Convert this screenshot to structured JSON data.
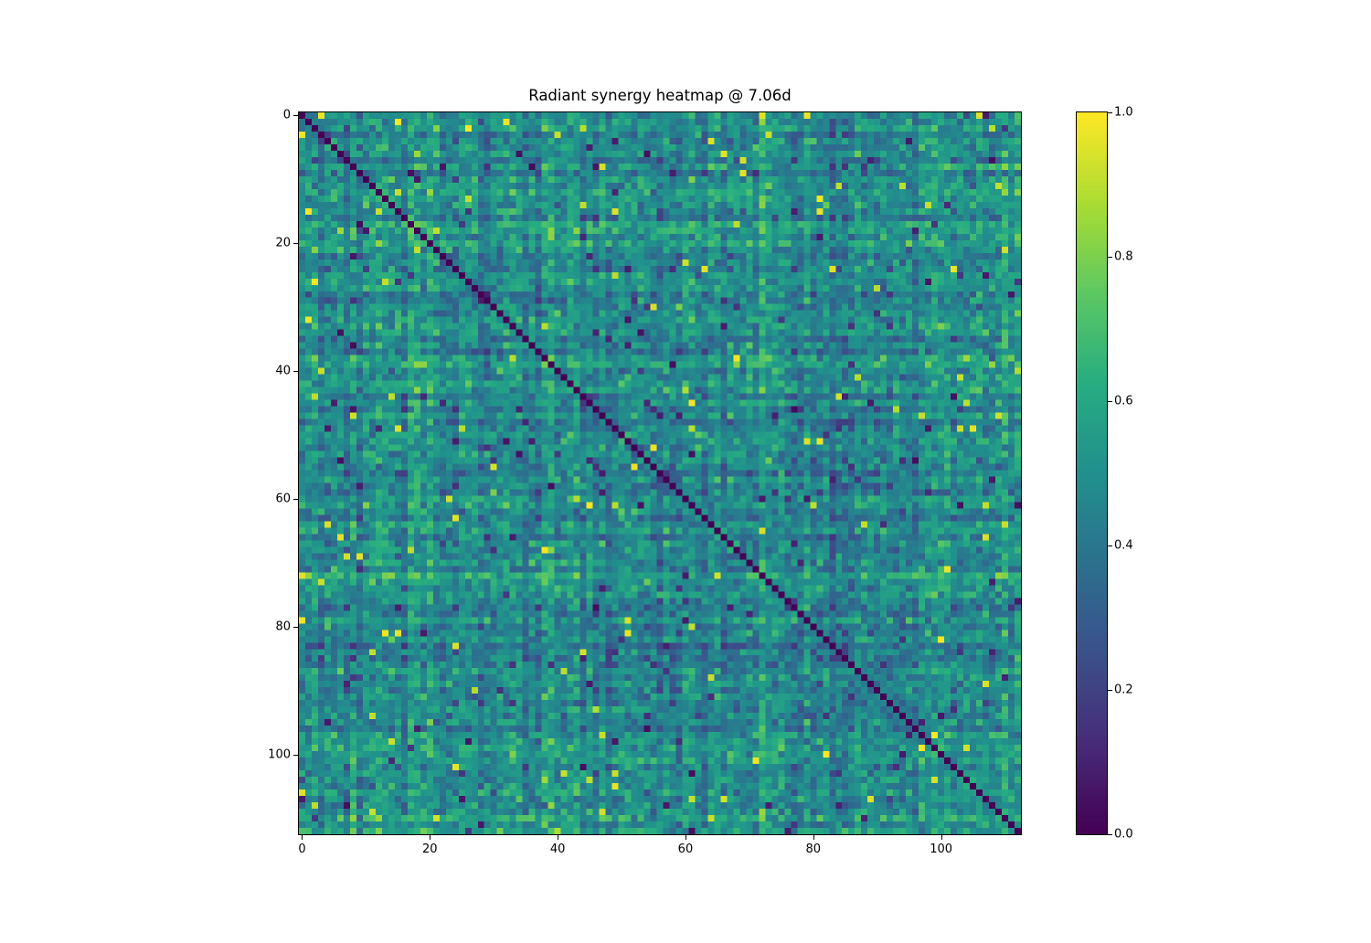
{
  "figure": {
    "title": "Radiant synergy heatmap @ 7.06d",
    "background_color": "#ffffff",
    "text_color": "#000000"
  },
  "chart_data": {
    "type": "heatmap",
    "title": "Radiant synergy heatmap @ 7.06d",
    "n_rows": 113,
    "n_cols": 113,
    "xlabel": "",
    "ylabel": "",
    "x_ticks": [
      0,
      20,
      40,
      60,
      80,
      100
    ],
    "y_ticks": [
      0,
      20,
      40,
      60,
      80,
      100
    ],
    "value_range": [
      0.0,
      1.0
    ],
    "colorbar_ticks": [
      0.0,
      0.2,
      0.4,
      0.6,
      0.8,
      1.0
    ],
    "colormap": "viridis",
    "colormap_stops": [
      {
        "t": 0.0,
        "color": "#440154"
      },
      {
        "t": 0.125,
        "color": "#472c7a"
      },
      {
        "t": 0.25,
        "color": "#3b518b"
      },
      {
        "t": 0.375,
        "color": "#2c718e"
      },
      {
        "t": 0.5,
        "color": "#21908d"
      },
      {
        "t": 0.625,
        "color": "#27ad81"
      },
      {
        "t": 0.75,
        "color": "#5cc863"
      },
      {
        "t": 0.875,
        "color": "#aadc32"
      },
      {
        "t": 1.0,
        "color": "#fde725"
      }
    ],
    "diagonal_value": 0.0,
    "symmetric": true,
    "generator": {
      "seed": 70600,
      "base_mean": 0.5,
      "noise_std": 0.09,
      "row_effect_std": 0.06,
      "bright_outlier_prob": 0.012,
      "dark_outlier_prob": 0.018,
      "bright_outlier_range": [
        0.88,
        1.0
      ],
      "dark_outlier_range": [
        0.03,
        0.18
      ],
      "clip_range": [
        0.02,
        1.0
      ]
    }
  }
}
